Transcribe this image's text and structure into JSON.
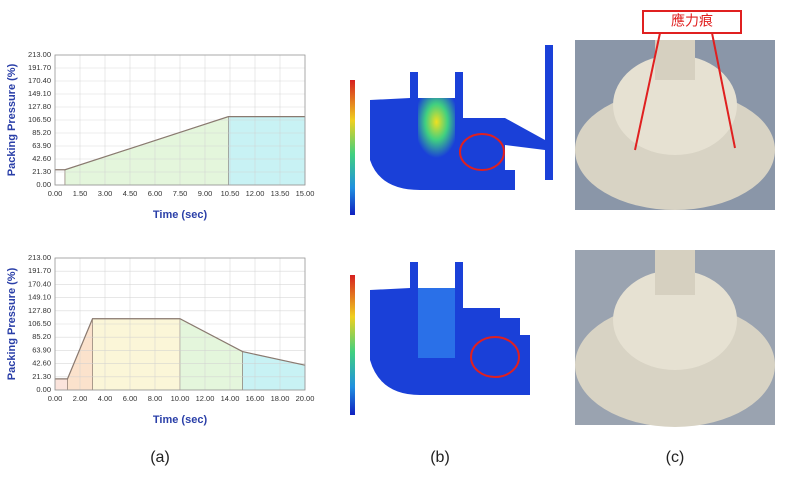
{
  "chart_data": [
    {
      "type": "line",
      "x_label": "Time (sec)",
      "y_label": "Packing Pressure (%)",
      "x": [
        0,
        0.6,
        10.4,
        15
      ],
      "values": [
        25,
        25,
        112,
        112
      ],
      "color": "#8a7a70",
      "segment_colors": [
        "#ffffff",
        "#e4f6dc",
        "#c8f2f4"
      ],
      "xlim": [
        0,
        15
      ],
      "ylim": [
        0,
        213
      ],
      "grid": true,
      "xticks": [
        {
          "value": 0,
          "label": "0.00"
        },
        {
          "value": 1.5,
          "label": "1.50"
        },
        {
          "value": 3,
          "label": "3.00"
        },
        {
          "value": 4.5,
          "label": "4.50"
        },
        {
          "value": 6,
          "label": "6.00"
        },
        {
          "value": 7.5,
          "label": "7.50"
        },
        {
          "value": 9,
          "label": "9.00"
        },
        {
          "value": 10.5,
          "label": "10.50"
        },
        {
          "value": 12,
          "label": "12.00"
        },
        {
          "value": 13.5,
          "label": "13.50"
        },
        {
          "value": 15,
          "label": "15.00"
        }
      ],
      "yticks": [
        {
          "value": 0,
          "label": "0.00"
        },
        {
          "value": 21.3,
          "label": "21.30"
        },
        {
          "value": 42.6,
          "label": "42.60"
        },
        {
          "value": 63.9,
          "label": "63.90"
        },
        {
          "value": 85.2,
          "label": "85.20"
        },
        {
          "value": 106.5,
          "label": "106.50"
        },
        {
          "value": 127.8,
          "label": "127.80"
        },
        {
          "value": 149.1,
          "label": "149.10"
        },
        {
          "value": 170.4,
          "label": "170.40"
        },
        {
          "value": 191.7,
          "label": "191.70"
        },
        {
          "value": 213,
          "label": "213.00"
        }
      ]
    },
    {
      "type": "line",
      "x_label": "Time (sec)",
      "y_label": "Packing Pressure (%)",
      "x": [
        0,
        1,
        3,
        10,
        15,
        20
      ],
      "values": [
        18,
        18,
        115,
        115,
        62,
        40
      ],
      "color": "#8a7a70",
      "segment_colors": [
        "#fbe4dc",
        "#fbe2cc",
        "#fbf6d8",
        "#e4f6dc",
        "#c8f2f4"
      ],
      "xlim": [
        0,
        20
      ],
      "ylim": [
        0,
        213
      ],
      "grid": true,
      "xticks": [
        {
          "value": 0,
          "label": "0.00"
        },
        {
          "value": 2,
          "label": "2.00"
        },
        {
          "value": 4,
          "label": "4.00"
        },
        {
          "value": 6,
          "label": "6.00"
        },
        {
          "value": 8,
          "label": "8.00"
        },
        {
          "value": 10,
          "label": "10.00"
        },
        {
          "value": 12,
          "label": "12.00"
        },
        {
          "value": 14,
          "label": "14.00"
        },
        {
          "value": 16,
          "label": "16.00"
        },
        {
          "value": 18,
          "label": "18.00"
        },
        {
          "value": 20,
          "label": "20.00"
        }
      ],
      "yticks": [
        {
          "value": 0,
          "label": "0.00"
        },
        {
          "value": 21.3,
          "label": "21.30"
        },
        {
          "value": 42.6,
          "label": "42.60"
        },
        {
          "value": 63.9,
          "label": "63.90"
        },
        {
          "value": 85.2,
          "label": "85.20"
        },
        {
          "value": 106.5,
          "label": "106.50"
        },
        {
          "value": 127.8,
          "label": "127.80"
        },
        {
          "value": 149.1,
          "label": "149.10"
        },
        {
          "value": 170.4,
          "label": "170.40"
        },
        {
          "value": 191.7,
          "label": "191.70"
        },
        {
          "value": 213,
          "label": "213.00"
        }
      ]
    }
  ],
  "figure": {
    "captions": [
      "(a)",
      "(b)",
      "(c)"
    ],
    "annotation": "應力痕"
  }
}
